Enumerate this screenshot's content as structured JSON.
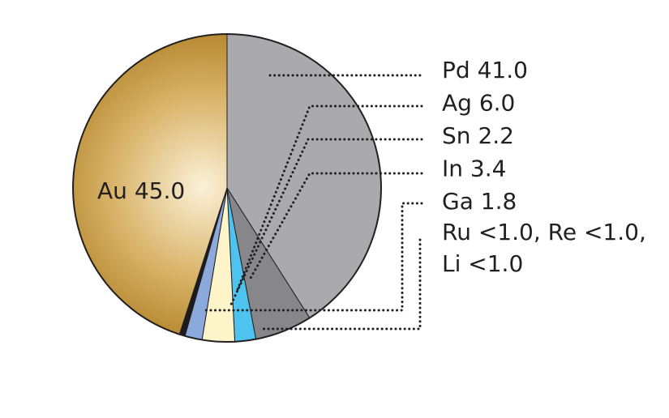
{
  "chart_data": {
    "type": "pie",
    "categories": [
      "Au",
      "Pd",
      "Ag",
      "Sn",
      "In",
      "Ga"
    ],
    "values": [
      45.0,
      41.0,
      6.0,
      2.2,
      3.4,
      1.8
    ],
    "value_labels": [
      "45.0",
      "41.0",
      "6.0",
      "2.2",
      "3.4",
      "1.8"
    ],
    "colors": [
      "#b98a2e",
      "#a9a9ae",
      "#86868b",
      "#4fc3ef",
      "#fdf5c9",
      "#8ca9dc"
    ],
    "annotations": [
      "Ru <1.0, Re <1.0,",
      "Li <1.0"
    ]
  }
}
